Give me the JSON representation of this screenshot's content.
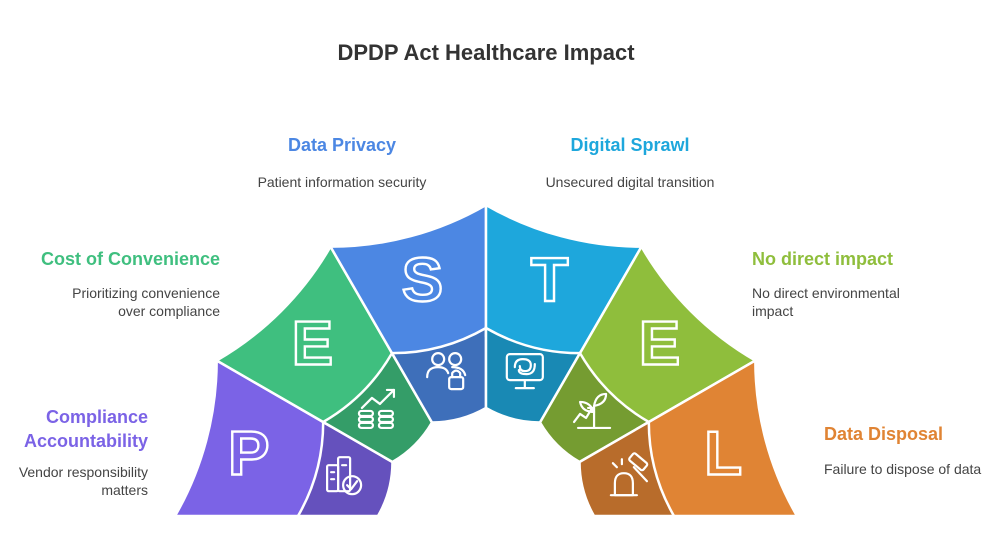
{
  "title": "DPDP Act Healthcare Impact",
  "segments": [
    {
      "letter": "P",
      "label_line1": "Compliance",
      "label_line2": "Accountability",
      "desc_line1": "Vendor responsibility",
      "desc_line2": "matters",
      "color": "#7b63e6",
      "icon": "building-check-icon"
    },
    {
      "letter": "E",
      "label_line1": "Cost of Convenience",
      "desc_line1": "Prioritizing convenience",
      "desc_line2": "over compliance",
      "color": "#3fbf7f",
      "icon": "growth-coins-icon"
    },
    {
      "letter": "S",
      "label_line1": "Data Privacy",
      "desc_line1": "Patient information security",
      "color": "#4c87e3",
      "icon": "users-lock-icon"
    },
    {
      "letter": "T",
      "label_line1": "Digital Sprawl",
      "desc_line1": "Unsecured digital transition",
      "color": "#1ea7dc",
      "icon": "monitor-tangle-icon"
    },
    {
      "letter": "E",
      "label_line1": "No direct impact",
      "desc_line1": "No direct environmental",
      "desc_line2": "impact",
      "color": "#8fbe3c",
      "icon": "plant-growth-icon"
    },
    {
      "letter": "L",
      "label_line1": "Data Disposal",
      "desc_line1": "Failure to dispose of data",
      "color": "#e08434",
      "icon": "gavel-icon"
    }
  ]
}
